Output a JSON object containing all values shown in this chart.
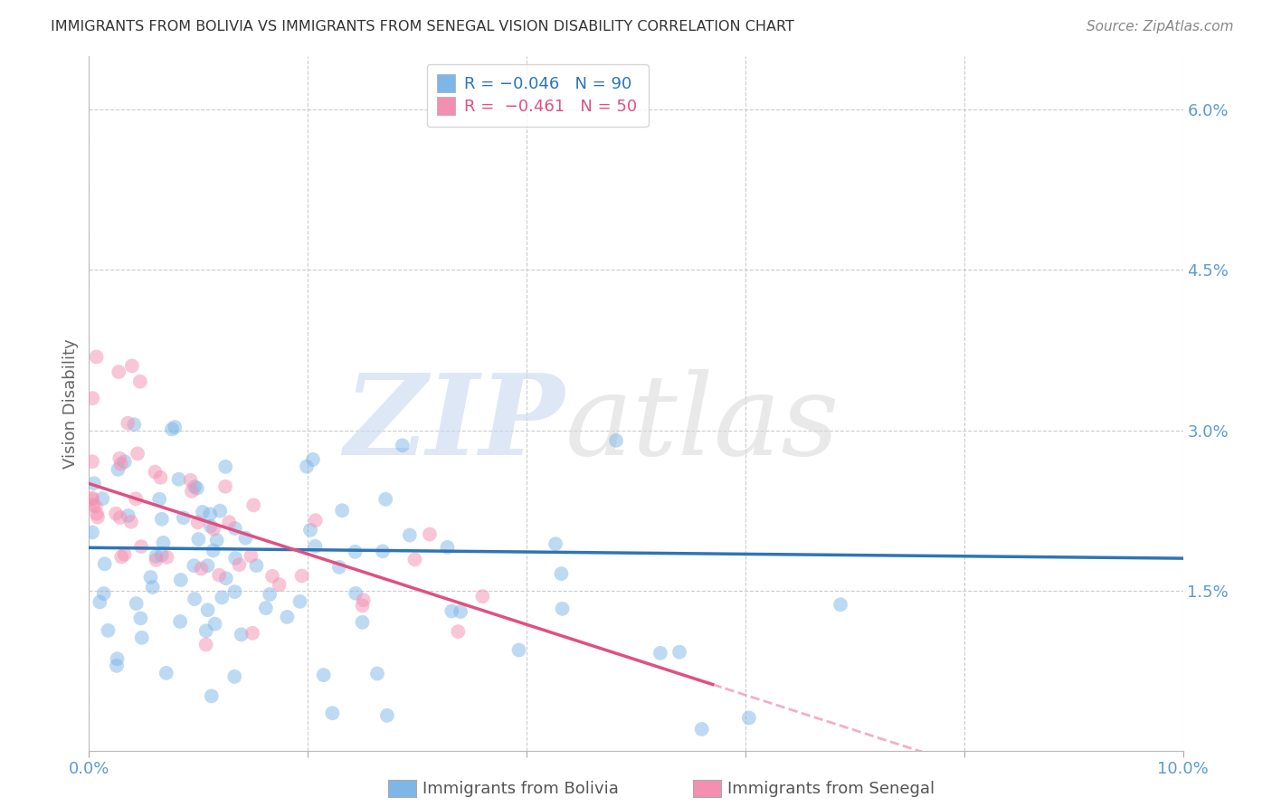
{
  "title": "IMMIGRANTS FROM BOLIVIA VS IMMIGRANTS FROM SENEGAL VISION DISABILITY CORRELATION CHART",
  "source": "Source: ZipAtlas.com",
  "ylabel": "Vision Disability",
  "xlim": [
    0.0,
    0.1
  ],
  "ylim": [
    0.0,
    0.065
  ],
  "xtick_vals": [
    0.0,
    0.02,
    0.04,
    0.06,
    0.08,
    0.1
  ],
  "ytick_vals": [
    0.0,
    0.015,
    0.03,
    0.045,
    0.06
  ],
  "bolivia_color": "#7EB6E8",
  "senegal_color": "#F48FB1",
  "bolivia_line_color": "#2E75B6",
  "senegal_line_color": "#E05080",
  "bolivia_R": -0.046,
  "bolivia_N": 90,
  "senegal_R": -0.461,
  "senegal_N": 50,
  "background_color": "#ffffff",
  "grid_color": "#cccccc",
  "axis_label_color": "#5B9BD5",
  "ylabel_color": "#666666",
  "title_color": "#333333",
  "source_color": "#888888"
}
